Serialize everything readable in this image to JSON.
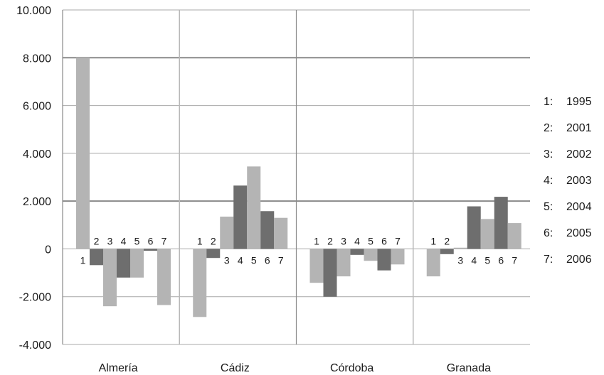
{
  "chart_data": {
    "type": "bar",
    "title": "",
    "xlabel": "",
    "ylabel": "",
    "ylim": [
      -4000,
      10000
    ],
    "y_ticks": [
      {
        "value": -4000,
        "label": "-4.000"
      },
      {
        "value": -2000,
        "label": "-2.000"
      },
      {
        "value": 0,
        "label": "0"
      },
      {
        "value": 2000,
        "label": "2.000"
      },
      {
        "value": 4000,
        "label": "4.000"
      },
      {
        "value": 6000,
        "label": "6.000"
      },
      {
        "value": 8000,
        "label": "8.000"
      },
      {
        "value": 10000,
        "label": "10.000"
      }
    ],
    "categories": [
      "Almería",
      "Cádiz",
      "Córdoba",
      "Granada"
    ],
    "bar_labels": [
      "1",
      "2",
      "3",
      "4",
      "5",
      "6",
      "7"
    ],
    "series": [
      {
        "name": "1995",
        "key": "1",
        "color": "#b4b4b4",
        "values": [
          8000,
          -2850,
          -1420,
          -1150
        ]
      },
      {
        "name": "2001",
        "key": "2",
        "color": "#6e6e6e",
        "values": [
          -680,
          -380,
          -2000,
          -220
        ]
      },
      {
        "name": "2002",
        "key": "3",
        "color": "#b4b4b4",
        "values": [
          -2400,
          1350,
          -1150,
          50
        ]
      },
      {
        "name": "2003",
        "key": "4",
        "color": "#6e6e6e",
        "values": [
          -1200,
          2650,
          -250,
          1780
        ]
      },
      {
        "name": "2004",
        "key": "5",
        "color": "#b4b4b4",
        "values": [
          -1200,
          3450,
          -500,
          1250
        ]
      },
      {
        "name": "2005",
        "key": "6",
        "color": "#6e6e6e",
        "values": [
          -80,
          1580,
          -900,
          2180
        ]
      },
      {
        "name": "2006",
        "key": "7",
        "color": "#b4b4b4",
        "values": [
          -2350,
          1300,
          -650,
          1080
        ]
      }
    ],
    "grid": true,
    "legend_position": "right",
    "legend": [
      {
        "key": "1:",
        "label": "1995"
      },
      {
        "key": "2:",
        "label": "2001"
      },
      {
        "key": "3:",
        "label": "2002"
      },
      {
        "key": "4:",
        "label": "2003"
      },
      {
        "key": "5:",
        "label": "2004"
      },
      {
        "key": "6:",
        "label": "2005"
      },
      {
        "key": "7:",
        "label": "2006"
      }
    ]
  }
}
